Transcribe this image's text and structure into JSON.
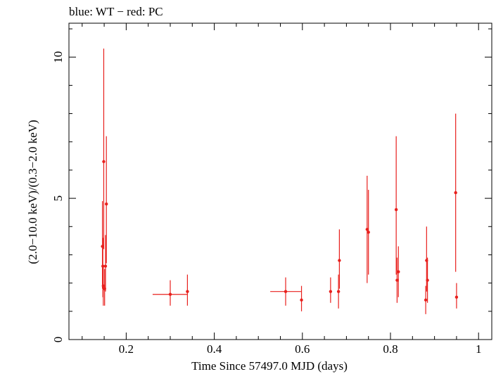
{
  "chart_data": {
    "type": "scatter",
    "title": "blue: WT − red: PC",
    "xlabel": "Time Since 57497.0 MJD (days)",
    "ylabel": "(2.0−10.0 keV)/(0.3−2.0 keV)",
    "xlim": [
      0.07,
      1.03
    ],
    "ylim": [
      0,
      11.2
    ],
    "xticks": [
      0.2,
      0.4,
      0.6,
      0.8,
      1.0
    ],
    "xtick_labels": [
      "0.2",
      "0.4",
      "0.6",
      "0.8",
      "1"
    ],
    "yticks": [
      0,
      5,
      10
    ],
    "ytick_labels": [
      "0",
      "5",
      "10"
    ],
    "series": [
      {
        "name": "PC",
        "color": "#e8201d",
        "points": [
          {
            "x": 0.146,
            "y": 3.3,
            "xerr": 0.001,
            "ylo": 1.8,
            "yhi": 4.9
          },
          {
            "x": 0.147,
            "y": 2.6,
            "xerr": 0.001,
            "ylo": 1.5,
            "yhi": 3.6
          },
          {
            "x": 0.148,
            "y": 1.9,
            "xerr": 0.001,
            "ylo": 1.2,
            "yhi": 2.6
          },
          {
            "x": 0.149,
            "y": 6.3,
            "xerr": 0.001,
            "ylo": 3.2,
            "yhi": 10.3
          },
          {
            "x": 0.151,
            "y": 1.8,
            "xerr": 0.001,
            "ylo": 1.2,
            "yhi": 2.5
          },
          {
            "x": 0.153,
            "y": 2.6,
            "xerr": 0.001,
            "ylo": 1.7,
            "yhi": 3.7
          },
          {
            "x": 0.155,
            "y": 4.8,
            "xerr": 0.001,
            "ylo": 2.7,
            "yhi": 7.2
          },
          {
            "x": 0.3,
            "y": 1.6,
            "xerr": 0.04,
            "ylo": 1.2,
            "yhi": 2.1
          },
          {
            "x": 0.339,
            "y": 1.7,
            "xerr": 0.001,
            "ylo": 1.2,
            "yhi": 2.3
          },
          {
            "x": 0.562,
            "y": 1.7,
            "xerr": 0.035,
            "ylo": 1.2,
            "yhi": 2.2
          },
          {
            "x": 0.598,
            "y": 1.4,
            "xerr": 0.001,
            "ylo": 1.0,
            "yhi": 1.9
          },
          {
            "x": 0.664,
            "y": 1.7,
            "xerr": 0.001,
            "ylo": 1.3,
            "yhi": 2.2
          },
          {
            "x": 0.682,
            "y": 1.7,
            "xerr": 0.001,
            "ylo": 1.1,
            "yhi": 2.3
          },
          {
            "x": 0.684,
            "y": 2.8,
            "xerr": 0.001,
            "ylo": 1.8,
            "yhi": 3.9
          },
          {
            "x": 0.747,
            "y": 3.9,
            "xerr": 0.001,
            "ylo": 2.0,
            "yhi": 5.8
          },
          {
            "x": 0.75,
            "y": 3.8,
            "xerr": 0.001,
            "ylo": 2.3,
            "yhi": 5.3
          },
          {
            "x": 0.813,
            "y": 4.6,
            "xerr": 0.001,
            "ylo": 2.3,
            "yhi": 7.2
          },
          {
            "x": 0.815,
            "y": 2.1,
            "xerr": 0.001,
            "ylo": 1.3,
            "yhi": 2.9
          },
          {
            "x": 0.818,
            "y": 2.4,
            "xerr": 0.001,
            "ylo": 1.5,
            "yhi": 3.3
          },
          {
            "x": 0.88,
            "y": 1.4,
            "xerr": 0.001,
            "ylo": 0.9,
            "yhi": 1.9
          },
          {
            "x": 0.882,
            "y": 2.8,
            "xerr": 0.001,
            "ylo": 1.7,
            "yhi": 4.0
          },
          {
            "x": 0.884,
            "y": 2.1,
            "xerr": 0.001,
            "ylo": 1.3,
            "yhi": 2.9
          },
          {
            "x": 0.948,
            "y": 5.2,
            "xerr": 0.001,
            "ylo": 2.4,
            "yhi": 8.0
          },
          {
            "x": 0.95,
            "y": 1.5,
            "xerr": 0.001,
            "ylo": 1.1,
            "yhi": 2.0
          }
        ]
      }
    ]
  }
}
